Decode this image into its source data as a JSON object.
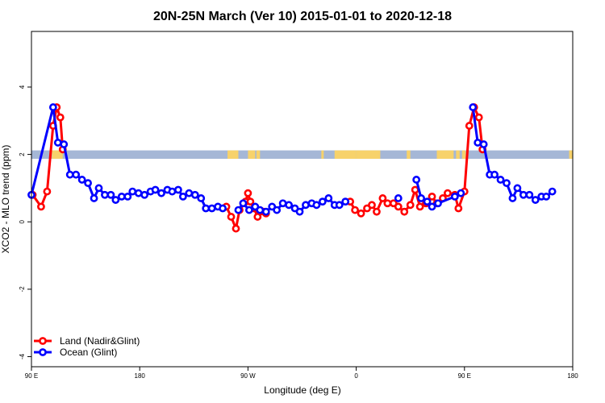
{
  "chart_data": {
    "type": "line",
    "title": "20N-25N March (Ver 10)   2015-01-01 to 2020-12-18",
    "xlabel": "Longitude (deg E)",
    "ylabel": "XCO2 - MLO trend (ppm)",
    "xlim": [
      90,
      540
    ],
    "ylim": [
      -4.3,
      5.65
    ],
    "x_ticks": [
      90,
      180,
      270,
      360,
      450,
      540
    ],
    "x_tick_labels": [
      "90 E",
      "180",
      "90 W",
      "0",
      "90 E",
      "180"
    ],
    "y_ticks": [
      -4,
      -2,
      0,
      2,
      4
    ],
    "y_tick_labels": [
      "-4",
      "-2",
      "0",
      "2",
      "4"
    ],
    "grid": false,
    "legend_position": "bottom-left",
    "colors": {
      "land": "#ff0000",
      "ocean": "#0000ff",
      "band_ocean": "#a5b7d6",
      "band_land": "#f7d26b"
    },
    "band": {
      "y_low": 1.87,
      "y_high": 2.12
    },
    "band_land_ranges": [
      [
        107,
        116
      ],
      [
        253,
        262
      ],
      [
        270,
        276
      ],
      [
        277,
        280
      ],
      [
        331,
        333
      ],
      [
        342,
        360
      ],
      [
        360,
        380
      ],
      [
        402,
        405
      ],
      [
        427,
        441
      ],
      [
        443,
        446
      ],
      [
        448,
        451
      ],
      [
        537,
        540
      ]
    ],
    "series": [
      {
        "name": "Land (Nadir&Glint)",
        "color": "#ff0000",
        "segments": [
          [
            [
              91,
              0.8
            ],
            [
              98,
              0.45
            ],
            [
              103,
              0.9
            ],
            [
              108,
              2.85
            ],
            [
              111,
              3.4
            ],
            [
              114,
              3.1
            ],
            [
              116,
              2.15
            ]
          ],
          [
            [
              252,
              0.45
            ],
            [
              256,
              0.15
            ],
            [
              260,
              -0.2
            ],
            [
              263,
              0.35
            ],
            [
              268,
              0.6
            ],
            [
              270,
              0.85
            ],
            [
              272,
              0.6
            ],
            [
              275,
              0.4
            ],
            [
              278,
              0.15
            ],
            [
              283,
              0.3
            ],
            [
              285,
              0.25
            ]
          ],
          [
            [
              355,
              0.6
            ],
            [
              359,
              0.35
            ],
            [
              364,
              0.25
            ],
            [
              369,
              0.4
            ],
            [
              373,
              0.5
            ],
            [
              377,
              0.3
            ],
            [
              382,
              0.7
            ],
            [
              386,
              0.55
            ],
            [
              391,
              0.55
            ],
            [
              395,
              0.45
            ],
            [
              400,
              0.3
            ],
            [
              405,
              0.5
            ],
            [
              409,
              0.95
            ],
            [
              413,
              0.45
            ],
            [
              418,
              0.55
            ],
            [
              423,
              0.75
            ],
            [
              427,
              0.55
            ],
            [
              432,
              0.7
            ],
            [
              436,
              0.85
            ],
            [
              442,
              0.8
            ],
            [
              445,
              0.4
            ],
            [
              450,
              0.9
            ],
            [
              454,
              2.85
            ],
            [
              458,
              3.4
            ],
            [
              462,
              3.1
            ],
            [
              465,
              2.15
            ]
          ]
        ]
      },
      {
        "name": "Ocean (Glint)",
        "color": "#0000ff",
        "segments": [
          [
            [
              90,
              0.8
            ],
            [
              108,
              3.4
            ],
            [
              112,
              2.35
            ],
            [
              117,
              2.3
            ],
            [
              122,
              1.4
            ],
            [
              127,
              1.4
            ],
            [
              132,
              1.25
            ],
            [
              137,
              1.15
            ],
            [
              142,
              0.7
            ],
            [
              146,
              1.0
            ],
            [
              151,
              0.8
            ],
            [
              156,
              0.8
            ],
            [
              160,
              0.65
            ],
            [
              165,
              0.75
            ],
            [
              170,
              0.75
            ],
            [
              174,
              0.9
            ],
            [
              179,
              0.85
            ],
            [
              184,
              0.8
            ],
            [
              189,
              0.9
            ],
            [
              193,
              0.95
            ],
            [
              198,
              0.85
            ],
            [
              203,
              0.95
            ],
            [
              207,
              0.9
            ],
            [
              212,
              0.95
            ],
            [
              216,
              0.75
            ],
            [
              221,
              0.85
            ],
            [
              226,
              0.8
            ],
            [
              231,
              0.7
            ],
            [
              235,
              0.4
            ],
            [
              240,
              0.4
            ],
            [
              245,
              0.45
            ],
            [
              249,
              0.4
            ]
          ],
          [
            [
              262,
              0.35
            ],
            [
              266,
              0.55
            ],
            [
              271,
              0.35
            ],
            [
              276,
              0.45
            ],
            [
              280,
              0.35
            ],
            [
              285,
              0.3
            ],
            [
              290,
              0.45
            ],
            [
              294,
              0.35
            ],
            [
              299,
              0.55
            ],
            [
              304,
              0.5
            ],
            [
              309,
              0.4
            ],
            [
              313,
              0.3
            ],
            [
              318,
              0.5
            ],
            [
              323,
              0.55
            ],
            [
              327,
              0.5
            ],
            [
              332,
              0.6
            ],
            [
              337,
              0.7
            ],
            [
              342,
              0.5
            ],
            [
              346,
              0.5
            ],
            [
              351,
              0.6
            ]
          ],
          [
            [
              395,
              0.7
            ]
          ],
          [
            [
              410,
              1.25
            ],
            [
              414,
              0.7
            ],
            [
              419,
              0.6
            ],
            [
              423,
              0.45
            ],
            [
              428,
              0.55
            ],
            [
              442,
              0.75
            ],
            [
              447,
              0.85
            ]
          ],
          [
            [
              457,
              3.4
            ],
            [
              461,
              2.35
            ],
            [
              466,
              2.3
            ],
            [
              471,
              1.4
            ],
            [
              475,
              1.4
            ],
            [
              480,
              1.25
            ],
            [
              485,
              1.15
            ],
            [
              490,
              0.7
            ],
            [
              494,
              1.0
            ],
            [
              499,
              0.8
            ],
            [
              504,
              0.8
            ],
            [
              509,
              0.65
            ],
            [
              514,
              0.75
            ],
            [
              518,
              0.75
            ],
            [
              523,
              0.9
            ]
          ]
        ]
      }
    ]
  }
}
